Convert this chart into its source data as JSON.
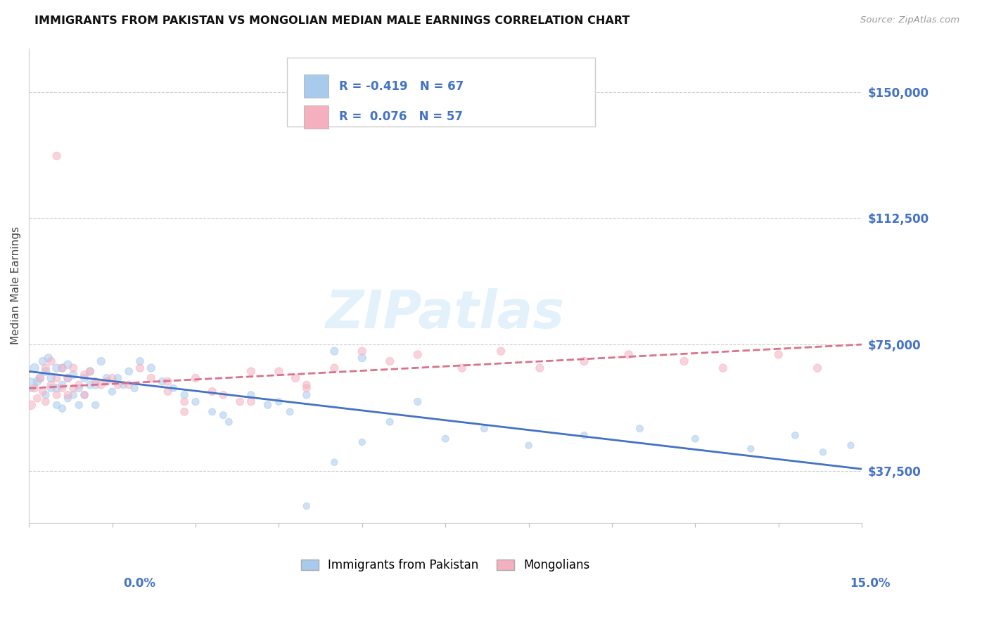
{
  "title": "IMMIGRANTS FROM PAKISTAN VS MONGOLIAN MEDIAN MALE EARNINGS CORRELATION CHART",
  "source": "Source: ZipAtlas.com",
  "ylabel": "Median Male Earnings",
  "yticks": [
    37500,
    75000,
    112500,
    150000
  ],
  "ytick_labels": [
    "$37,500",
    "$75,000",
    "$112,500",
    "$150,000"
  ],
  "xmin": 0.0,
  "xmax": 0.15,
  "ymin": 22000,
  "ymax": 163000,
  "color_blue": "#a8caed",
  "color_pink": "#f5b0c0",
  "color_blue_dark": "#4472c4",
  "color_pink_dark": "#d9728a",
  "series1_name": "Immigrants from Pakistan",
  "series2_name": "Mongolians",
  "r1": "-0.419",
  "n1": "67",
  "r2": "0.076",
  "n2": "57",
  "pakistan_x": [
    0.0002,
    0.001,
    0.0015,
    0.002,
    0.0025,
    0.003,
    0.003,
    0.0035,
    0.004,
    0.004,
    0.005,
    0.005,
    0.005,
    0.006,
    0.006,
    0.006,
    0.007,
    0.007,
    0.007,
    0.008,
    0.008,
    0.009,
    0.009,
    0.01,
    0.01,
    0.011,
    0.011,
    0.012,
    0.012,
    0.013,
    0.014,
    0.015,
    0.016,
    0.017,
    0.018,
    0.019,
    0.02,
    0.022,
    0.024,
    0.026,
    0.028,
    0.03,
    0.033,
    0.036,
    0.04,
    0.043,
    0.047,
    0.05,
    0.055,
    0.06,
    0.065,
    0.07,
    0.075,
    0.082,
    0.09,
    0.1,
    0.11,
    0.12,
    0.13,
    0.138,
    0.143,
    0.148,
    0.05,
    0.055,
    0.06,
    0.045,
    0.035
  ],
  "pakistan_y": [
    63000,
    68000,
    64000,
    65000,
    70000,
    60000,
    67000,
    71000,
    62000,
    65000,
    57000,
    62000,
    68000,
    56000,
    63000,
    68000,
    59000,
    65000,
    69000,
    60000,
    66000,
    57000,
    62000,
    60000,
    65000,
    63000,
    67000,
    57000,
    63000,
    70000,
    65000,
    61000,
    65000,
    63000,
    67000,
    62000,
    70000,
    68000,
    64000,
    62000,
    60000,
    58000,
    55000,
    52000,
    60000,
    57000,
    55000,
    60000,
    73000,
    71000,
    52000,
    58000,
    47000,
    50000,
    45000,
    48000,
    50000,
    47000,
    44000,
    48000,
    43000,
    45000,
    27000,
    40000,
    46000,
    58000,
    54000
  ],
  "pakistan_size": [
    200,
    80,
    70,
    75,
    65,
    60,
    70,
    65,
    60,
    70,
    55,
    65,
    70,
    55,
    60,
    65,
    55,
    65,
    70,
    55,
    65,
    55,
    60,
    55,
    65,
    60,
    65,
    55,
    60,
    65,
    60,
    55,
    60,
    55,
    60,
    55,
    60,
    65,
    60,
    55,
    55,
    55,
    50,
    50,
    55,
    55,
    50,
    55,
    65,
    65,
    50,
    55,
    50,
    50,
    45,
    50,
    50,
    50,
    45,
    50,
    45,
    45,
    45,
    45,
    45,
    50,
    50
  ],
  "mongolian_x": [
    0.0004,
    0.001,
    0.0015,
    0.002,
    0.0025,
    0.003,
    0.003,
    0.004,
    0.004,
    0.005,
    0.005,
    0.006,
    0.006,
    0.007,
    0.007,
    0.008,
    0.008,
    0.009,
    0.01,
    0.01,
    0.011,
    0.012,
    0.013,
    0.014,
    0.015,
    0.016,
    0.018,
    0.02,
    0.022,
    0.025,
    0.025,
    0.028,
    0.03,
    0.033,
    0.038,
    0.04,
    0.045,
    0.048,
    0.05,
    0.005,
    0.028,
    0.055,
    0.06,
    0.065,
    0.07,
    0.078,
    0.085,
    0.092,
    0.1,
    0.108,
    0.118,
    0.125,
    0.135,
    0.142,
    0.04,
    0.035,
    0.05
  ],
  "mongolian_y": [
    57000,
    62000,
    59000,
    65000,
    61000,
    68000,
    58000,
    63000,
    70000,
    60000,
    65000,
    62000,
    68000,
    60000,
    65000,
    62000,
    68000,
    63000,
    66000,
    60000,
    67000,
    64000,
    63000,
    64000,
    65000,
    63000,
    63000,
    68000,
    65000,
    61000,
    64000,
    58000,
    65000,
    61000,
    58000,
    67000,
    67000,
    65000,
    63000,
    131000,
    55000,
    68000,
    73000,
    70000,
    72000,
    68000,
    73000,
    68000,
    70000,
    72000,
    70000,
    68000,
    72000,
    68000,
    58000,
    60000,
    62000
  ],
  "mongolian_size": [
    80,
    65,
    60,
    65,
    60,
    65,
    60,
    65,
    65,
    60,
    65,
    60,
    65,
    60,
    65,
    60,
    65,
    60,
    65,
    60,
    65,
    60,
    60,
    65,
    65,
    60,
    60,
    65,
    65,
    60,
    65,
    60,
    65,
    65,
    60,
    65,
    65,
    65,
    60,
    65,
    60,
    65,
    65,
    65,
    65,
    65,
    65,
    65,
    65,
    65,
    65,
    65,
    65,
    65,
    60,
    60,
    60
  ],
  "pk_trend_y0": 67000,
  "pk_trend_y1": 38000,
  "mn_trend_y0": 62000,
  "mn_trend_y1": 75000
}
